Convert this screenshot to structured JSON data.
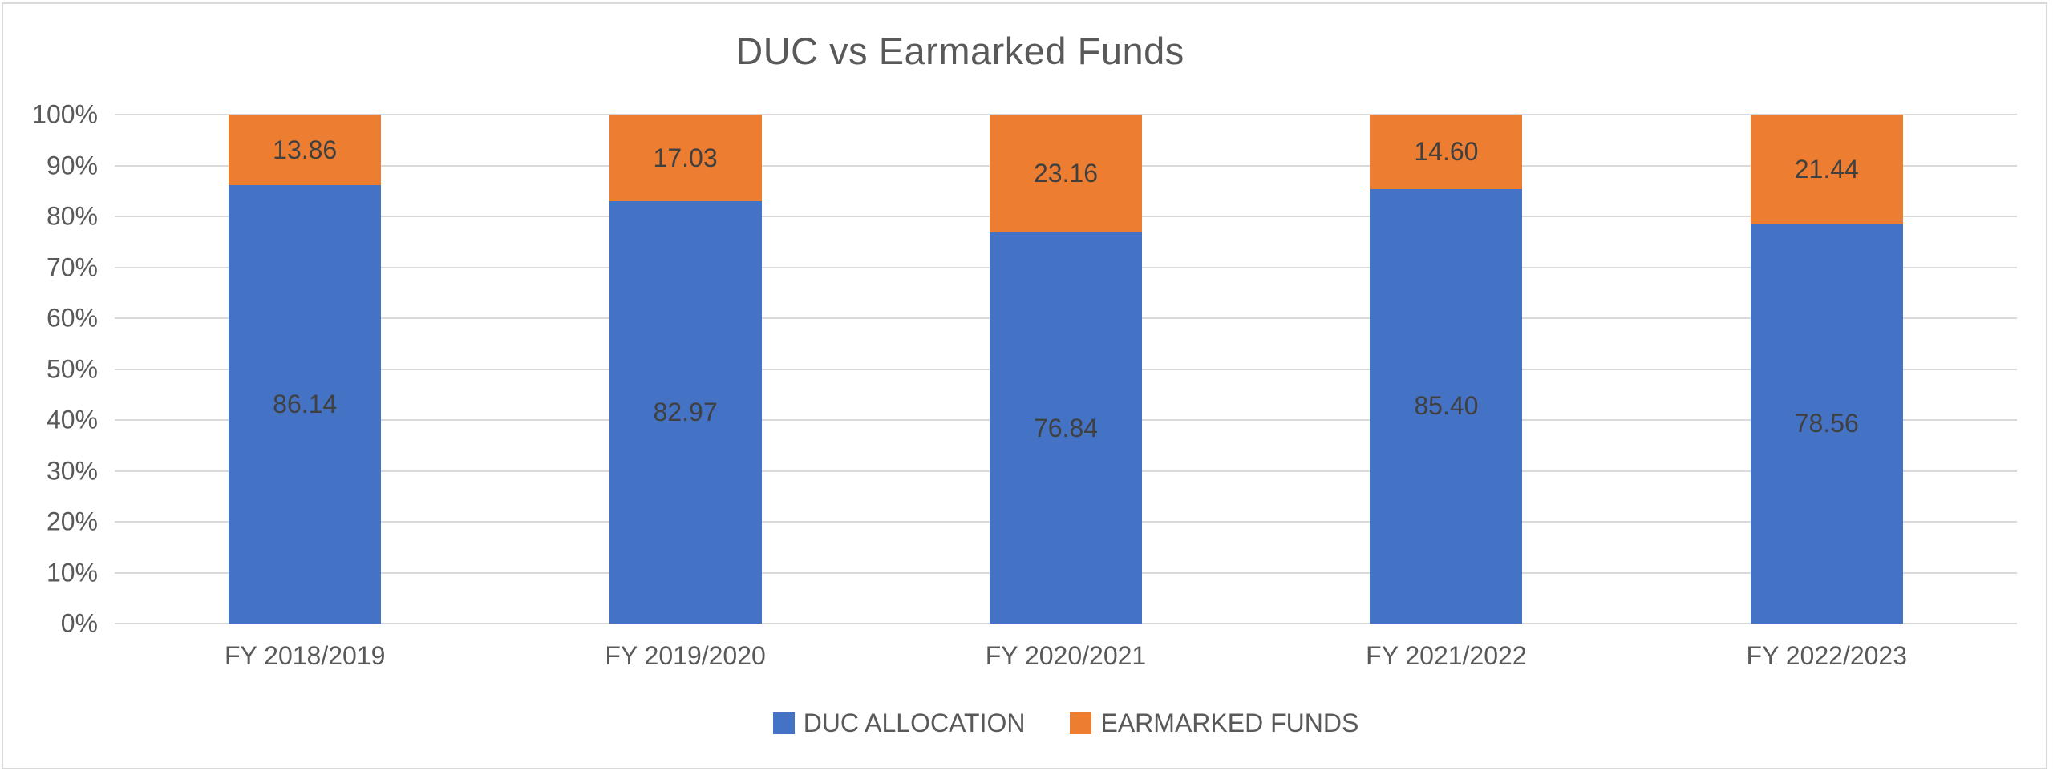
{
  "chart_data": {
    "type": "bar",
    "subtype": "stacked-100-percent-column",
    "title": "DUC vs Earmarked Funds",
    "categories": [
      "FY 2018/2019",
      "FY 2019/2020",
      "FY 2020/2021",
      "FY 2021/2022",
      "FY 2022/2023"
    ],
    "series": [
      {
        "name": "DUC ALLOCATION",
        "color": "#4472C4",
        "values": [
          86.14,
          82.97,
          76.84,
          85.4,
          78.56
        ],
        "labels": [
          "86.14",
          "82.97",
          "76.84",
          "85.40",
          "78.56"
        ]
      },
      {
        "name": "EARMARKED FUNDS",
        "color": "#ED7D31",
        "values": [
          13.86,
          17.03,
          23.16,
          14.6,
          21.44
        ],
        "labels": [
          "13.86",
          "17.03",
          "23.16",
          "14.60",
          "21.44"
        ]
      }
    ],
    "xlabel": "",
    "ylabel": "",
    "ylim": [
      0,
      100
    ],
    "y_ticks": [
      "100%",
      "90%",
      "80%",
      "70%",
      "60%",
      "50%",
      "40%",
      "30%",
      "20%",
      "10%",
      "0%"
    ],
    "grid": true,
    "gridline_color": "#D9D9D9",
    "legend_position": "bottom",
    "data_label_color": "#404040",
    "axis_text_color": "#595959",
    "title_color": "#595959"
  }
}
